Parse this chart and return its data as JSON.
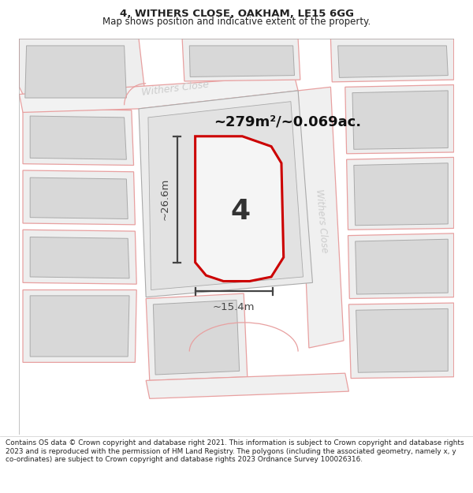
{
  "title_line1": "4, WITHERS CLOSE, OAKHAM, LE15 6GG",
  "title_line2": "Map shows position and indicative extent of the property.",
  "footer_text": "Contains OS data © Crown copyright and database right 2021. This information is subject to Crown copyright and database rights 2023 and is reproduced with the permission of HM Land Registry. The polygons (including the associated geometry, namely x, y co-ordinates) are subject to Crown copyright and database rights 2023 Ordnance Survey 100026316.",
  "area_label": "~279m²/~0.069ac.",
  "number_label": "4",
  "dim_h": "~26.6m",
  "dim_w": "~15.4m",
  "street_label": "Withers Close",
  "street_label_top": "Withers Close",
  "bg_color": "#f8f8f8",
  "plot_outline_color": "#cc0000",
  "building_fill": "#d8d8d8",
  "building_outline": "#aaaaaa",
  "parcel_fill": "#eeeeee",
  "road_fill": "#f0f0f0",
  "dim_line_color": "#444444",
  "text_color": "#222222",
  "pink_line_color": "#e8a0a0",
  "white": "#ffffff"
}
